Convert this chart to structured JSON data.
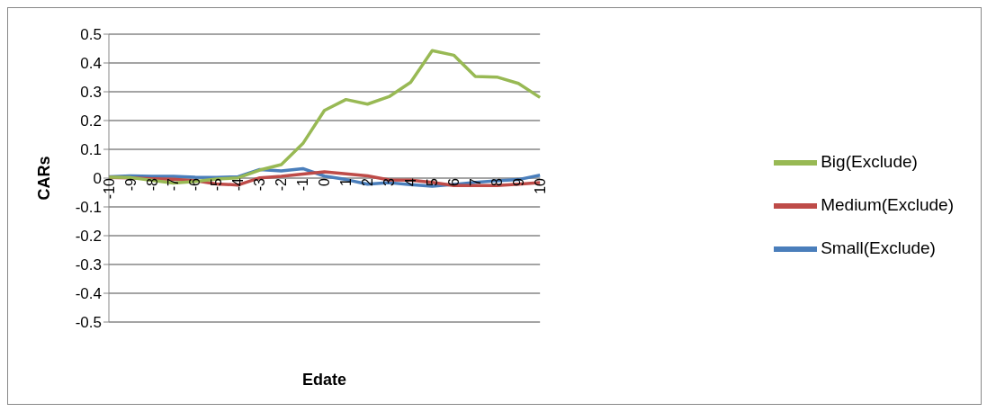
{
  "chart_data": {
    "type": "line",
    "xlabel": "Edate",
    "ylabel": "CARs",
    "categories": [
      "-10",
      "-9",
      "-8",
      "-7",
      "-6",
      "-5",
      "-4",
      "-3",
      "-2",
      "-1",
      "0",
      "1",
      "2",
      "3",
      "4",
      "5",
      "6",
      "7",
      "8",
      "9",
      "10"
    ],
    "series": [
      {
        "name": "Small(Exclude)",
        "color": "#4a7ebb",
        "values": [
          0.005,
          0.008,
          0.006,
          0.006,
          0.003,
          0.002,
          0.005,
          0.03,
          0.025,
          0.033,
          0.007,
          -0.005,
          -0.021,
          -0.016,
          -0.023,
          -0.028,
          -0.022,
          -0.015,
          -0.009,
          -0.005,
          0.01
        ]
      },
      {
        "name": "Medium(Exclude)",
        "color": "#be4b48",
        "values": [
          0.002,
          0.001,
          -0.002,
          -0.004,
          -0.009,
          -0.02,
          -0.024,
          0.001,
          0.006,
          0.014,
          0.022,
          0.015,
          0.008,
          -0.006,
          -0.007,
          -0.015,
          -0.026,
          -0.026,
          -0.026,
          -0.021,
          -0.016
        ]
      },
      {
        "name": "Big(Exclude)",
        "color": "#98b954",
        "values": [
          0.003,
          0.002,
          -0.008,
          -0.017,
          -0.012,
          -0.003,
          0.001,
          0.028,
          0.047,
          0.12,
          0.235,
          0.273,
          0.257,
          0.283,
          0.333,
          0.443,
          0.427,
          0.353,
          0.351,
          0.329,
          0.28
        ]
      }
    ],
    "ylim": [
      -0.5,
      0.5
    ],
    "yticks": [
      -0.5,
      -0.4,
      -0.3,
      -0.2,
      -0.1,
      0,
      0.1,
      0.2,
      0.3,
      0.4,
      0.5
    ],
    "grid": "y",
    "legend": "right",
    "marker": "none",
    "line_style": "solid"
  }
}
